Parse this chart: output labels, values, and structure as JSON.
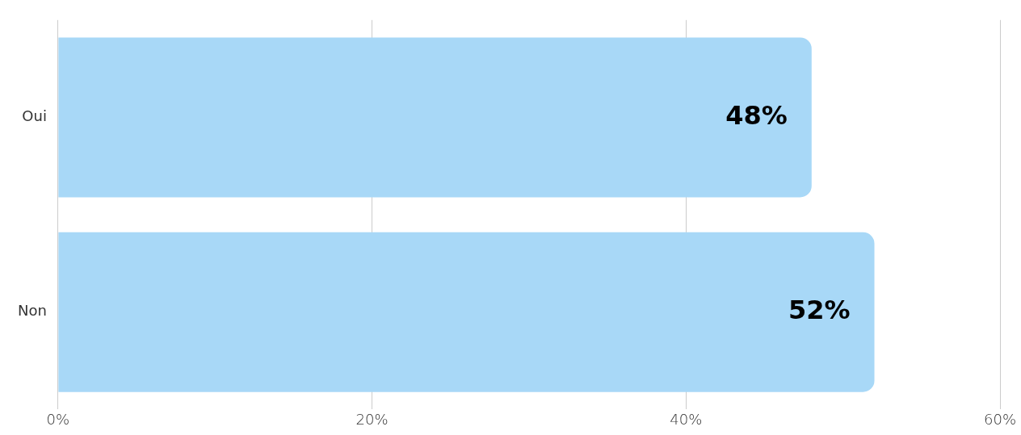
{
  "chart_data": {
    "type": "bar",
    "orientation": "horizontal",
    "categories": [
      "Oui",
      "Non"
    ],
    "values": [
      48,
      52
    ],
    "color": "#a8d8f7",
    "value_labels": [
      "48%",
      "52%"
    ],
    "xlim": [
      0,
      60
    ],
    "xticks": [
      {
        "value": 0,
        "label": "0%"
      },
      {
        "value": 20,
        "label": "20%"
      },
      {
        "value": 40,
        "label": "40%"
      },
      {
        "value": 60,
        "label": "60%"
      }
    ],
    "grid": "x",
    "legend": false
  }
}
